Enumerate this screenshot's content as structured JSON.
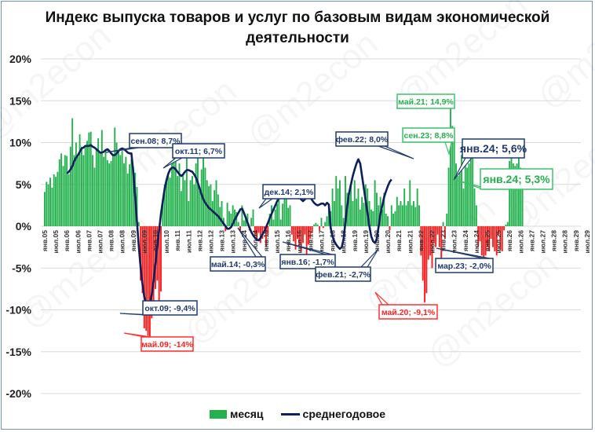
{
  "title": "Индекс выпуска товаров и услуг по базовым видам экономической деятельности",
  "watermark": "@m2econ",
  "colors": {
    "positive_bar": "#22b14c",
    "negative_bar": "#ff1a1a",
    "line": "#0d1f5c",
    "grid": "#d9d9d9",
    "frame": "#6f8fc0"
  },
  "legend": [
    {
      "label": "месяц",
      "type": "bar"
    },
    {
      "label": "среднегодовое",
      "type": "line"
    }
  ],
  "chart_data": {
    "type": "bar+line",
    "title": "Индекс выпуска товаров и услуг по базовым видам экономической деятельности",
    "xlabel": "",
    "ylabel": "",
    "ylim": [
      -20,
      20
    ],
    "yticks": [
      "20%",
      "15%",
      "10%",
      "5%",
      "0%",
      "-5%",
      "-10%",
      "-15%",
      "-20%"
    ],
    "grid": true,
    "legend_position": "bottom",
    "x_tick_labels": [
      "янв.05",
      "июл.05",
      "янв.06",
      "июл.06",
      "янв.07",
      "июл.07",
      "янв.08",
      "июл.08",
      "янв.09",
      "июл.09",
      "янв.10",
      "июл.10",
      "янв.11",
      "июл.11",
      "янв.12",
      "июл.12",
      "янв.13",
      "июл.13",
      "янв.14",
      "июл.14",
      "янв.15",
      "июл.15",
      "янв.16",
      "июл.16",
      "янв.17",
      "июл.17",
      "янв.18",
      "июл.18",
      "янв.19",
      "июл.19",
      "янв.20",
      "июл.20",
      "янв.21",
      "июл.21",
      "янв.22",
      "июл.22",
      "янв.23",
      "июл.23",
      "янв.24",
      "июл.24",
      "янв.25",
      "июл.25",
      "янв.26",
      "июл.26",
      "янв.27",
      "июл.27",
      "янв.28",
      "июл.28",
      "янв.29",
      "июл.29"
    ],
    "series": [
      {
        "name": "месяц",
        "type": "bar",
        "start": "янв.05",
        "values": [
          4.1,
          5.3,
          5.0,
          5.8,
          4.6,
          6.2,
          5.9,
          6.5,
          8.0,
          8.7,
          7.2,
          8.5,
          8.4,
          6.2,
          9.5,
          12.9,
          8.5,
          10.0,
          8.3,
          11.0,
          9.5,
          8.5,
          9.5,
          10.2,
          11.2,
          11.3,
          8.5,
          7.0,
          9.2,
          10.5,
          8.7,
          11.5,
          8.3,
          9.0,
          7.9,
          7.5,
          7.8,
          8.5,
          11.8,
          10.0,
          9.0,
          8.5,
          9.0,
          7.5,
          8.3,
          6.3,
          7.4,
          8.0,
          7.0,
          6.4,
          4.7,
          0.5,
          -6.5,
          -8.0,
          -12.2,
          -12.5,
          -13.1,
          -14.0,
          -11.0,
          -10.0,
          -7.5,
          -6.5,
          -9.0,
          -7.8,
          2.8,
          5.0,
          5.3,
          6.0,
          5.8,
          7.5,
          9.0,
          8.2,
          6.0,
          7.5,
          4.2,
          6.3,
          5.5,
          8.2,
          3.0,
          5.5,
          6.0,
          5.0,
          7.5,
          8.3,
          4.5,
          6.8,
          8.5,
          7.0,
          5.5,
          4.8,
          5.0,
          3.0,
          4.3,
          5.5,
          3.8,
          2.3,
          3.0,
          1.0,
          -0.6,
          2.8,
          1.8,
          1.5,
          2.5,
          2.0,
          1.7,
          0.5,
          -0.5,
          2.5,
          0.7,
          1.2,
          1.5,
          -0.5,
          1.0,
          2.0,
          -1.2,
          -1.8,
          -0.8,
          -2.0,
          -1.5,
          -0.3,
          -2.5,
          -1.0,
          1.5,
          2.5,
          0.8,
          2.0,
          2.7,
          3.5,
          0.8,
          2.7,
          3.5,
          4.0,
          2.2,
          2.5,
          -1.0,
          -1.8,
          -2.8,
          -1.5,
          -2.5,
          -3.0,
          -2.0,
          -1.0,
          -3.5,
          -2.2,
          -1.5,
          -0.8,
          0.2,
          0.4,
          0.2,
          -0.5,
          1.0,
          -0.2,
          0.5,
          1.2,
          2.5,
          1.8,
          4.5,
          3.0,
          6.0,
          4.5,
          5.5,
          2.5,
          1.0,
          6.0,
          4.0,
          3.5,
          5.0,
          3.0,
          5.5,
          3.3,
          4.5,
          2.0,
          3.5,
          2.8,
          5.0,
          4.5,
          3.0,
          2.0,
          1.8,
          5.5,
          4.0,
          2.5,
          3.5,
          2.0,
          4.0,
          1.5,
          1.2,
          -0.5,
          2.5,
          1.5,
          1.8,
          3.5,
          2.5,
          3.0,
          2.5,
          4.5,
          2.5,
          3.0,
          5.5,
          2.5,
          3.0,
          2.3,
          4.5,
          2.5,
          -3.5,
          -6.5,
          -9.1,
          -8.0,
          -4.0,
          -3.5,
          -5.0,
          -2.0,
          -2.5,
          -1.0,
          -2.5,
          -4.5,
          0.5,
          -1.5,
          1.5,
          7.0,
          14.9,
          12.0,
          11.5,
          7.5,
          6.0,
          6.5,
          8.5,
          4.5,
          9.2,
          7.0,
          7.5,
          8.0,
          9.0,
          4.5,
          2.5,
          -2.5,
          -1.8,
          -3.5,
          -4.0,
          -3.5,
          -2.5,
          -3.0,
          -1.5,
          -2.5,
          -3.0,
          -3.5,
          -1.0,
          -2.8,
          -3.0,
          -0.5,
          0.2,
          0.5,
          7.8,
          8.3,
          7.5,
          7.2,
          7.5,
          8.8,
          7.0,
          5.3
        ]
      },
      {
        "name": "среднегодовое",
        "type": "line",
        "start": "янв.06",
        "values": [
          6.3,
          6.5,
          6.8,
          7.2,
          7.8,
          8.2,
          8.5,
          8.9,
          9.3,
          9.4,
          9.6,
          9.6,
          9.6,
          9.7,
          9.5,
          9.4,
          9.2,
          9.0,
          8.8,
          8.8,
          8.9,
          9.1,
          9.2,
          9.0,
          8.7,
          8.5,
          8.5,
          8.7,
          9.0,
          9.2,
          9.3,
          9.2,
          9.0,
          8.8,
          8.7,
          8.7,
          6.5,
          3.5,
          0.5,
          -2.5,
          -5.0,
          -7.0,
          -8.5,
          -9.2,
          -9.4,
          -9.2,
          -8.2,
          -6.5,
          -4.5,
          -2.5,
          -0.5,
          1.5,
          3.0,
          4.5,
          5.5,
          6.3,
          6.8,
          7.0,
          7.0,
          6.8,
          6.5,
          6.2,
          6.0,
          6.2,
          6.5,
          6.7,
          6.7,
          6.6,
          6.5,
          6.2,
          5.8,
          5.2,
          4.5,
          3.8,
          3.2,
          2.8,
          2.5,
          2.2,
          2.0,
          1.8,
          1.6,
          1.4,
          1.2,
          0.9,
          0.6,
          0.3,
          0.0,
          -0.3,
          -0.3,
          -0.1,
          0.3,
          0.8,
          1.2,
          1.6,
          2.0,
          2.1,
          1.6,
          1.0,
          0.4,
          -0.2,
          -0.7,
          -1.1,
          -1.4,
          -1.6,
          -1.7,
          -1.4,
          -1.0,
          -0.6,
          -0.1,
          0.4,
          1.0,
          1.5,
          2.0,
          2.5,
          3.0,
          3.4,
          3.8,
          4.1,
          4.2,
          4.1,
          3.9,
          3.8,
          3.9,
          4.0,
          3.9,
          3.7,
          3.4,
          3.2,
          3.0,
          3.2,
          3.5,
          3.6,
          3.4,
          3.1,
          2.8,
          2.6,
          2.5,
          2.6,
          2.7,
          2.7,
          2.5,
          2.8,
          2.6,
          -0.2,
          -1.2,
          -1.8,
          -2.2,
          -2.5,
          -2.7,
          -2.5,
          -1.5,
          0.5,
          2.5,
          4.0,
          5.0,
          6.0,
          6.8,
          7.5,
          8.0,
          7.5,
          6.0,
          4.5,
          3.0,
          1.5,
          0.0,
          -1.2,
          -1.8,
          -2.0,
          -1.5,
          0.0,
          1.5,
          2.5,
          3.5,
          4.2,
          4.8,
          5.3,
          5.6
        ]
      }
    ],
    "annotations": [
      {
        "text": "сен.08; 8,7%",
        "series": "среднегодовое",
        "style": "navy"
      },
      {
        "text": "окт.09; -9,4%",
        "series": "среднегодовое",
        "style": "navy"
      },
      {
        "text": "май.09; -14%",
        "series": "месяц",
        "style": "red"
      },
      {
        "text": "окт.11; 6,7%",
        "series": "среднегодовое",
        "style": "navy"
      },
      {
        "text": "май.14; -0,3%",
        "series": "среднегодовое",
        "style": "navy"
      },
      {
        "text": "дек.14; 2,1%",
        "series": "среднегодовое",
        "style": "navy"
      },
      {
        "text": "янв.16; -1,7%",
        "series": "среднегодовое",
        "style": "navy"
      },
      {
        "text": "фев.21; -2,7%",
        "series": "среднегодовое",
        "style": "navy"
      },
      {
        "text": "май.20; -9,1%",
        "series": "месяц",
        "style": "red"
      },
      {
        "text": "фев.22; 8,0%",
        "series": "среднегодовое",
        "style": "navy"
      },
      {
        "text": "май.21; 14,9%",
        "series": "месяц",
        "style": "green"
      },
      {
        "text": "сен.23; 8,8%",
        "series": "месяц",
        "style": "green"
      },
      {
        "text": "мар.23; -2,0%",
        "series": "среднегодовое",
        "style": "navy"
      },
      {
        "text": "янв.24; 5,6%",
        "series": "среднегодовое",
        "style": "navy-big"
      },
      {
        "text": "янв.24; 5,3%",
        "series": "месяц",
        "style": "green-big"
      }
    ]
  }
}
